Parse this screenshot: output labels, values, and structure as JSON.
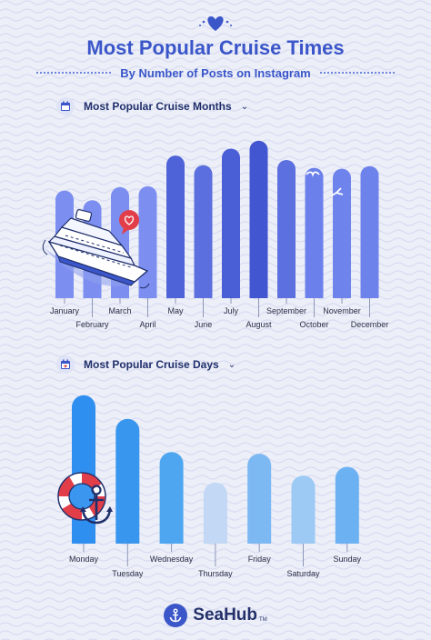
{
  "header": {
    "title": "Most Popular Cruise Times",
    "subtitle": "By Number of Posts on Instagram"
  },
  "chart_data": [
    {
      "type": "bar",
      "title": "Most Popular Cruise Months",
      "categories": [
        "January",
        "February",
        "March",
        "April",
        "May",
        "June",
        "July",
        "August",
        "September",
        "October",
        "November",
        "December"
      ],
      "values": [
        123,
        112,
        127,
        128,
        163,
        152,
        171,
        180,
        158,
        149,
        148,
        151
      ],
      "ylim": [
        0,
        185
      ],
      "grid": false,
      "legend": "none",
      "colors": [
        "#7c8ef0",
        "#7c8ef0",
        "#7c8ef0",
        "#7c8ef0",
        "#4f63d8",
        "#5b6fde",
        "#4a5fd6",
        "#4256d2",
        "#5c70df",
        "#6b80ea",
        "#6f83ec",
        "#6d82ea"
      ]
    },
    {
      "type": "bar",
      "title": "Most Popular Cruise Days",
      "categories": [
        "Monday",
        "Tuesday",
        "Wednesday",
        "Thursday",
        "Friday",
        "Saturday",
        "Sunday"
      ],
      "values": [
        170,
        143,
        105,
        70,
        103,
        78,
        88
      ],
      "ylim": [
        0,
        175
      ],
      "grid": false,
      "legend": "none",
      "colors": [
        "#2f8ff0",
        "#3996ee",
        "#4ea6f0",
        "#c2d8f5",
        "#7cb8f2",
        "#9ccaf4",
        "#6cb1f2"
      ]
    }
  ],
  "icons": {
    "heart": "heart-icon",
    "calendar": "calendar-icon",
    "ship": "cruise-ship-icon",
    "lifebuoy": "lifebuoy-icon",
    "anchor": "anchor-icon",
    "like": "like-bubble-icon",
    "bird": "seagull-icon"
  },
  "footer": {
    "brand": "SeaHub",
    "tm": "TM"
  }
}
